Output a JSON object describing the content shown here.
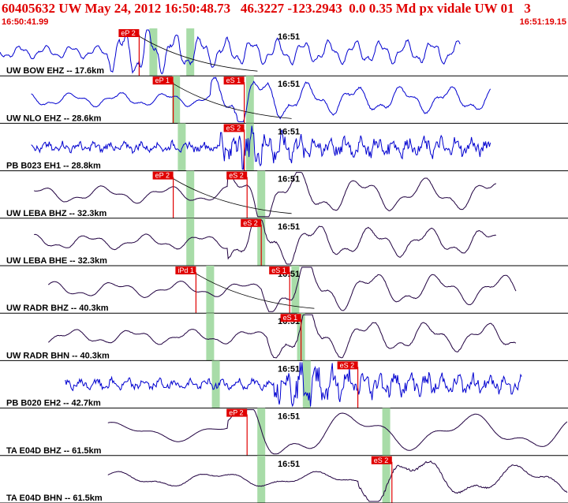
{
  "header": {
    "title": "60405632 UW May 24, 2012 16:50:48.73   46.3227 -123.2943  0.0 0.35 Md px vidale UW 01   3",
    "time_start": "16:50:41.99",
    "time_end": "16:51:19.15"
  },
  "time_mark": "16:51",
  "colors": {
    "blue": "#0000d0",
    "dark": "#200040",
    "pick": "#e00000",
    "band": "#a8dca8",
    "border": "#000000"
  },
  "traces": [
    {
      "label": "UW BOW EHZ -- 17.6km",
      "color": "blue",
      "start": 0.0,
      "end": 0.81,
      "amp": 0.26,
      "noise": 0.08,
      "burst": 0.25,
      "freq": 0.55,
      "bands": [
        0.27,
        0.335
      ],
      "picks": [
        {
          "text": "eP 2",
          "at": 0.245
        }
      ],
      "curve": true
    },
    {
      "label": "UW NLO EHZ -- 28.6km",
      "color": "blue",
      "start": 0.055,
      "end": 0.865,
      "amp": 0.28,
      "noise": 0.05,
      "burst": 0.43,
      "freq": 0.3,
      "bands": [
        0.31,
        0.44
      ],
      "picks": [
        {
          "text": "eP 1",
          "at": 0.305
        },
        {
          "text": "eS 1",
          "at": 0.43
        }
      ],
      "curve": true
    },
    {
      "label": "PB B023 EH1 -- 28.8km",
      "color": "blue",
      "start": 0.055,
      "end": 0.865,
      "amp": 0.16,
      "noise": 0.35,
      "burst": 0.44,
      "freq": 0.9,
      "bands": [
        0.32,
        0.44
      ],
      "picks": [
        {
          "text": "eS 2",
          "at": 0.43
        }
      ],
      "curve": false
    },
    {
      "label": "UW LEBA BHZ -- 32.3km",
      "color": "dark",
      "start": 0.06,
      "end": 0.875,
      "amp": 0.34,
      "noise": 0.02,
      "burst": 0.46,
      "freq": 0.22,
      "bands": [
        0.335,
        0.46
      ],
      "picks": [
        {
          "text": "eP 2",
          "at": 0.305
        },
        {
          "text": "eS 2",
          "at": 0.435
        }
      ],
      "curve": true
    },
    {
      "label": "UW LEBA BHE -- 32.3km",
      "color": "dark",
      "start": 0.06,
      "end": 0.875,
      "amp": 0.3,
      "noise": 0.03,
      "burst": 0.46,
      "freq": 0.25,
      "bands": [
        0.335,
        0.46
      ],
      "picks": [
        {
          "text": "eS 2",
          "at": 0.46
        }
      ],
      "curve": false
    },
    {
      "label": "UW RADR BHZ -- 40.3km",
      "color": "dark",
      "start": 0.085,
      "end": 0.91,
      "amp": 0.32,
      "noise": 0.02,
      "burst": 0.52,
      "freq": 0.22,
      "bands": [
        0.37,
        0.52
      ],
      "picks": [
        {
          "text": "iPd 1",
          "at": 0.345
        },
        {
          "text": "eS 1",
          "at": 0.51
        }
      ],
      "curve": true
    },
    {
      "label": "UW RADR BHN -- 40.3km",
      "color": "dark",
      "start": 0.085,
      "end": 0.91,
      "amp": 0.3,
      "noise": 0.03,
      "burst": 0.53,
      "freq": 0.24,
      "bands": [
        0.37,
        0.53
      ],
      "picks": [
        {
          "text": "eS 1",
          "at": 0.53
        }
      ],
      "curve": false
    },
    {
      "label": "PB B020 EH2 -- 42.7km",
      "color": "blue",
      "start": 0.115,
      "end": 0.92,
      "amp": 0.18,
      "noise": 0.35,
      "burst": 0.54,
      "freq": 0.9,
      "bands": [
        0.38,
        0.54
      ],
      "picks": [
        {
          "text": "eS 2",
          "at": 0.63
        }
      ],
      "curve": false
    },
    {
      "label": "TA E04D BHZ -- 61.5km",
      "color": "dark",
      "start": 0.19,
      "end": 1.0,
      "amp": 0.38,
      "noise": 0.01,
      "burst": 0.46,
      "freq": 0.12,
      "bands": [
        0.46,
        0.68
      ],
      "picks": [
        {
          "text": "eP 2",
          "at": 0.435
        }
      ],
      "curve": false
    },
    {
      "label": "TA E04D BHN -- 61.5km",
      "color": "dark",
      "start": 0.19,
      "end": 1.0,
      "amp": 0.3,
      "noise": 0.04,
      "burst": 0.69,
      "freq": 0.14,
      "bands": [
        0.46,
        0.68
      ],
      "picks": [
        {
          "text": "eS 2",
          "at": 0.69
        }
      ],
      "curve": false
    }
  ]
}
